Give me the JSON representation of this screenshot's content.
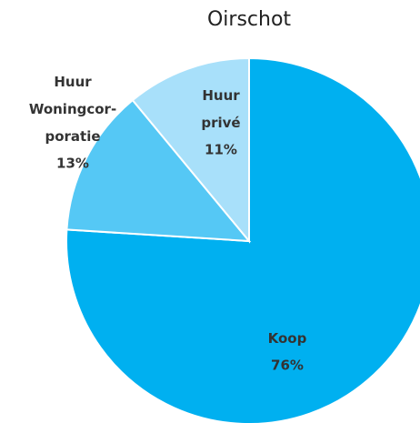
{
  "chart_data": {
    "type": "pie",
    "title": "Oirschot",
    "categories": [
      "Koop",
      "Huur Woningcor- poratie",
      "Huur privé"
    ],
    "values": [
      76,
      13,
      11
    ],
    "value_labels": [
      "76%",
      "13%",
      "11%"
    ],
    "colors": [
      "#00b0f0",
      "#55c8f5",
      "#a8e0fa"
    ]
  }
}
